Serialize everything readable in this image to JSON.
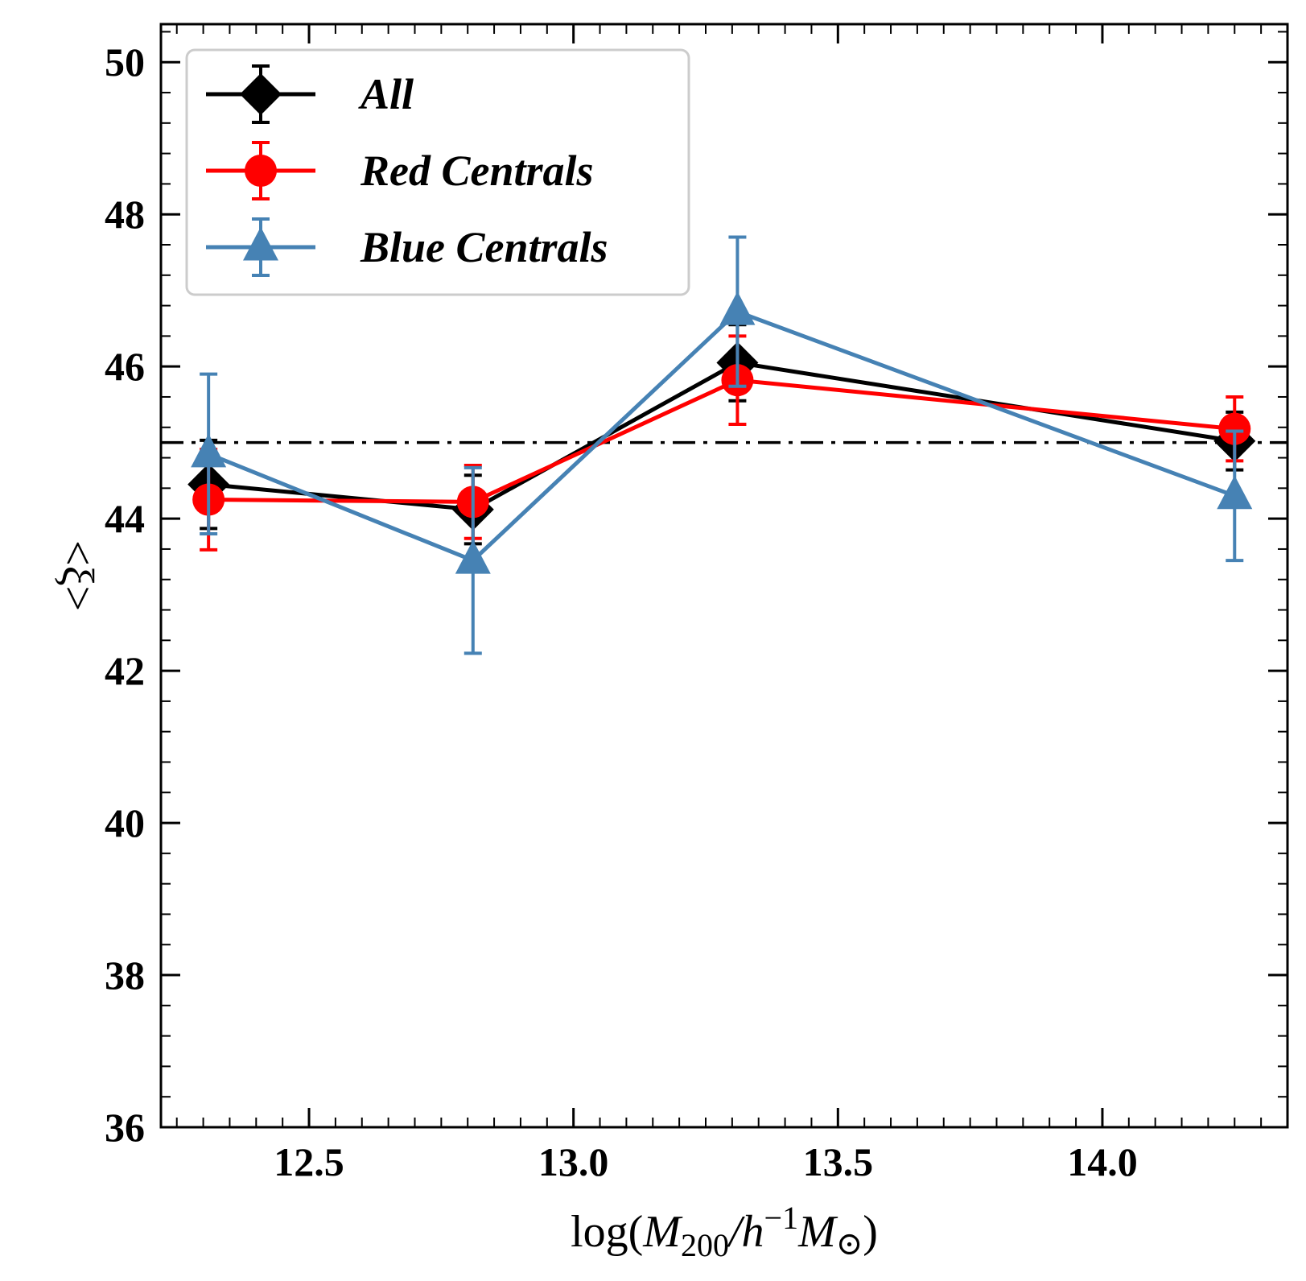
{
  "chart_data": {
    "type": "line",
    "xlabel": "log(M200/h−1M⊙)",
    "xlabel_parts": {
      "prefix": "log(",
      "m": "M",
      "sub200": "200",
      "slash_h": "/h",
      "sup": "−1",
      "m2": "M",
      "sun": "⊙",
      "suffix": ")"
    },
    "ylabel": "<ξ>",
    "xlim": [
      12.22,
      14.35
    ],
    "ylim": [
      36,
      50.5
    ],
    "xticks": [
      12.5,
      13.0,
      13.5,
      14.0
    ],
    "xtick_labels": [
      "12.5",
      "13.0",
      "13.5",
      "14.0"
    ],
    "yticks": [
      36,
      38,
      40,
      42,
      44,
      46,
      48,
      50
    ],
    "ytick_labels": [
      "36",
      "38",
      "40",
      "42",
      "44",
      "46",
      "48",
      "50"
    ],
    "reference_line": {
      "y": 45,
      "style": "dash-dot",
      "color": "#000000"
    },
    "grid": false,
    "legend_position": "top-left",
    "series": [
      {
        "name": "All",
        "color": "#000000",
        "marker": "diamond",
        "x": [
          12.31,
          12.81,
          13.31,
          14.25
        ],
        "y": [
          44.45,
          44.12,
          46.05,
          45.02
        ],
        "err": [
          0.58,
          0.45,
          0.5,
          0.38
        ]
      },
      {
        "name": "Red Centrals",
        "color": "#ff0000",
        "marker": "circle",
        "x": [
          12.31,
          12.81,
          13.31,
          14.25
        ],
        "y": [
          44.25,
          44.22,
          45.82,
          45.18
        ],
        "err": [
          0.66,
          0.48,
          0.58,
          0.42
        ]
      },
      {
        "name": "Blue Centrals",
        "color": "#4682b4",
        "marker": "triangle",
        "x": [
          12.31,
          12.81,
          13.31,
          14.25
        ],
        "y": [
          44.85,
          43.45,
          46.72,
          44.3
        ],
        "err": [
          1.05,
          1.22,
          0.98,
          0.85
        ]
      }
    ]
  }
}
